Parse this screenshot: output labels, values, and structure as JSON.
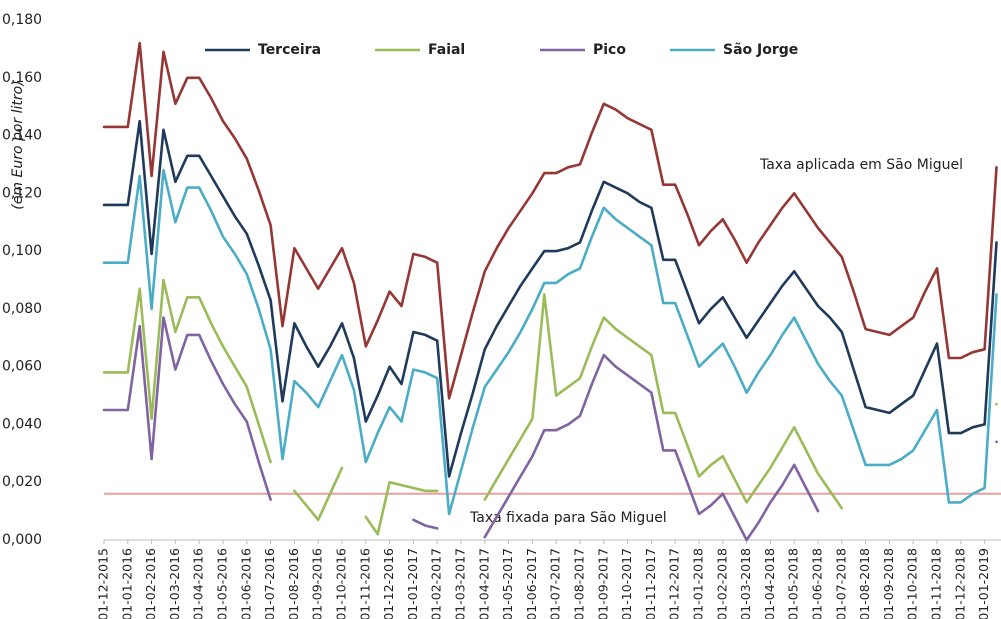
{
  "chart_data": {
    "type": "line",
    "y_label": "(em Euro por litro)",
    "categories": [
      "01-12-2015",
      null,
      "01-01-2016",
      null,
      "01-02-2016",
      null,
      "01-03-2016",
      null,
      "01-04-2016",
      null,
      "01-05-2016",
      null,
      "01-06-2016",
      null,
      "01-07-2016",
      null,
      "01-08-2016",
      null,
      "01-09-2016",
      null,
      "01-10-2016",
      null,
      "01-11-2016",
      null,
      "01-12-2016",
      null,
      "01-01-2017",
      null,
      "01-02-2017",
      null,
      "01-03-2017",
      null,
      "01-04-2017",
      null,
      "01-05-2017",
      null,
      "01-06-2017",
      null,
      "01-07-2017",
      null,
      "01-08-2017",
      null,
      "01-09-2017",
      null,
      "01-10-2017",
      null,
      "01-11-2017",
      null,
      "01-12-2017",
      null,
      "01-01-2018",
      null,
      "01-02-2018",
      null,
      "01-03-2018",
      null,
      "01-04-2018",
      null,
      "01-05-2018",
      null,
      "01-06-2018",
      null,
      "01-07-2018",
      null,
      "01-08-2018",
      null,
      "01-09-2018",
      null,
      "01-10-2018",
      null,
      "01-11-2018",
      null,
      "01-12-2018",
      null,
      "01-01-2019",
      null
    ],
    "series": [
      {
        "color": "#953735",
        "values": [
          0.143,
          0.143,
          0.143,
          0.172,
          0.126,
          0.169,
          0.151,
          0.16,
          0.16,
          0.153,
          0.145,
          0.139,
          0.132,
          0.121,
          0.109,
          0.074,
          0.101,
          0.094,
          0.087,
          0.094,
          0.101,
          0.089,
          0.067,
          0.076,
          0.086,
          0.081,
          0.099,
          0.098,
          0.096,
          0.049,
          0.064,
          0.079,
          0.093,
          0.101,
          0.108,
          0.114,
          0.12,
          0.127,
          0.127,
          0.129,
          0.13,
          0.141,
          0.151,
          0.149,
          0.146,
          0.144,
          0.142,
          0.123,
          0.123,
          0.113,
          0.102,
          0.107,
          0.111,
          0.104,
          0.096,
          0.103,
          0.109,
          0.115,
          0.12,
          0.114,
          0.108,
          0.103,
          0.098,
          0.086,
          0.073,
          0.072,
          0.071,
          0.074,
          0.077,
          0.086,
          0.094,
          0.063,
          0.063,
          0.065,
          0.066,
          0.129
        ]
      },
      {
        "name": "Terceira",
        "color": "#1f3a5a",
        "values": [
          0.116,
          0.116,
          0.116,
          0.145,
          0.099,
          0.142,
          0.124,
          0.133,
          0.133,
          0.126,
          0.119,
          0.112,
          0.106,
          0.095,
          0.083,
          0.048,
          0.075,
          0.067,
          0.06,
          0.067,
          0.075,
          0.063,
          0.041,
          0.05,
          0.06,
          0.054,
          0.072,
          0.071,
          0.069,
          0.022,
          0.037,
          0.051,
          0.066,
          0.074,
          0.081,
          0.088,
          0.094,
          0.1,
          0.1,
          0.101,
          0.103,
          0.114,
          0.124,
          0.122,
          0.12,
          0.117,
          0.115,
          0.097,
          0.097,
          0.086,
          0.075,
          0.08,
          0.084,
          0.077,
          0.07,
          0.076,
          0.082,
          0.088,
          0.093,
          0.087,
          0.081,
          0.077,
          0.072,
          0.059,
          0.046,
          0.045,
          0.044,
          0.047,
          0.05,
          0.059,
          0.068,
          0.037,
          0.037,
          0.039,
          0.04,
          0.103
        ]
      },
      {
        "name": "Faial",
        "color": "#9bbb59",
        "values": [
          0.058,
          0.058,
          0.058,
          0.087,
          0.042,
          0.09,
          0.072,
          0.084,
          0.084,
          0.075,
          0.067,
          0.06,
          0.053,
          0.04,
          0.027,
          null,
          0.017,
          0.012,
          0.007,
          0.016,
          0.025,
          null,
          0.008,
          0.002,
          0.02,
          0.019,
          0.018,
          0.017,
          0.017,
          null,
          null,
          null,
          0.014,
          0.021,
          0.028,
          0.035,
          0.042,
          0.085,
          0.05,
          0.053,
          0.056,
          0.067,
          0.077,
          0.073,
          0.07,
          0.067,
          0.064,
          0.044,
          0.044,
          0.033,
          0.022,
          0.026,
          0.029,
          0.021,
          0.013,
          0.019,
          0.025,
          0.032,
          0.039,
          0.031,
          0.023,
          0.017,
          0.011,
          null,
          null,
          null,
          null,
          null,
          null,
          null,
          null,
          null,
          null,
          null,
          null,
          0.047
        ]
      },
      {
        "name": "Pico",
        "color": "#8064a2",
        "values": [
          0.045,
          0.045,
          0.045,
          0.074,
          0.028,
          0.077,
          0.059,
          0.071,
          0.071,
          0.062,
          0.054,
          0.047,
          0.041,
          0.027,
          0.014,
          null,
          null,
          null,
          null,
          null,
          null,
          null,
          null,
          null,
          null,
          null,
          0.007,
          0.005,
          0.004,
          null,
          null,
          null,
          0.001,
          0.008,
          0.015,
          0.022,
          0.029,
          0.038,
          0.038,
          0.04,
          0.043,
          0.054,
          0.064,
          0.06,
          0.057,
          0.054,
          0.051,
          0.031,
          0.031,
          0.02,
          0.009,
          0.012,
          0.016,
          0.008,
          0.0,
          0.006,
          0.013,
          0.019,
          0.026,
          0.018,
          0.01,
          null,
          null,
          null,
          null,
          null,
          null,
          null,
          null,
          null,
          null,
          null,
          null,
          null,
          null,
          0.034
        ]
      },
      {
        "name": "São Jorge",
        "color": "#4bacc6",
        "values": [
          0.096,
          0.096,
          0.096,
          0.126,
          0.08,
          0.128,
          0.11,
          0.122,
          0.122,
          0.114,
          0.105,
          0.099,
          0.092,
          0.08,
          0.066,
          0.028,
          0.055,
          0.051,
          0.046,
          0.055,
          0.064,
          0.052,
          0.027,
          0.037,
          0.046,
          0.041,
          0.059,
          0.058,
          0.056,
          0.009,
          0.024,
          0.039,
          0.053,
          0.059,
          0.065,
          0.072,
          0.08,
          0.089,
          0.089,
          0.092,
          0.094,
          0.105,
          0.115,
          0.111,
          0.108,
          0.105,
          0.102,
          0.082,
          0.082,
          0.071,
          0.06,
          0.064,
          0.068,
          0.06,
          0.051,
          0.058,
          0.064,
          0.071,
          0.077,
          0.069,
          0.061,
          0.055,
          0.05,
          0.038,
          0.026,
          0.026,
          0.026,
          0.028,
          0.031,
          0.038,
          0.045,
          0.013,
          0.013,
          0.016,
          0.018,
          0.085
        ]
      }
    ],
    "reference_line": {
      "value": 0.016,
      "color": "#e6a0a0",
      "label": "Taxa fixada para São Miguel"
    },
    "annotation": "Taxa aplicada em São Miguel",
    "ylim": [
      0,
      0.18
    ],
    "yticks": [
      {
        "value": 0,
        "label": "0,000"
      },
      {
        "value": 0.02,
        "label": "0,020"
      },
      {
        "value": 0.04,
        "label": "0,040"
      },
      {
        "value": 0.06,
        "label": "0,060"
      },
      {
        "value": 0.08,
        "label": "0,080"
      },
      {
        "value": 0.1,
        "label": "0,100"
      },
      {
        "value": 0.12,
        "label": "0,120"
      },
      {
        "value": 0.14,
        "label": "0,140"
      },
      {
        "value": 0.16,
        "label": "0,160"
      },
      {
        "value": 0.18,
        "label": "0,180"
      }
    ]
  }
}
